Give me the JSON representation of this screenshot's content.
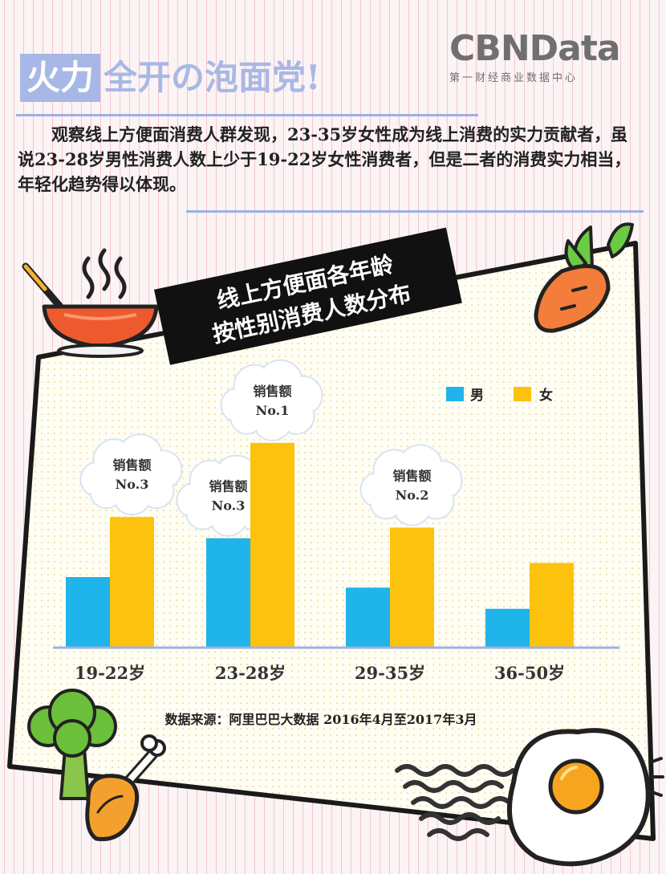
{
  "header": {
    "title_highlight": "火力",
    "title_rest": "全开の泡面党!",
    "logo": "CBNData",
    "logo_sub": "第一财经商业数据中心"
  },
  "intro_text": "观察线上方便面消费人群发现，23-35岁女性成为线上消费的实力贡献者，虽说23-28岁男性消费人数上少于19-22岁女性消费者，但是二者的消费实力相当，年轻化趋势得以体现。",
  "chart_title_lines": [
    "线上方便面各年龄",
    "按性别消费人数分布"
  ],
  "source": "数据来源：阿里巴巴大数据 2016年4月至2017年3月",
  "colors": {
    "male": "#1fb4ea",
    "female": "#fdc20d",
    "title_blue": "#a8b8e6",
    "axis": "#9db0e3"
  },
  "icons": [
    "soup-pot-icon",
    "carrot-icon",
    "broccoli-icon",
    "chicken-leg-icon",
    "fried-egg-icon",
    "noodles-icon"
  ],
  "chart_data": {
    "type": "bar",
    "categories": [
      "19-22岁",
      "23-28岁",
      "29-35岁",
      "36-50岁"
    ],
    "series": [
      {
        "name": "男",
        "values": [
          20,
          31,
          17,
          11
        ]
      },
      {
        "name": "女",
        "values": [
          37,
          58,
          34,
          24
        ]
      }
    ],
    "ylim": [
      0,
      60
    ],
    "grid": false,
    "legend": "top-right",
    "annotations": [
      {
        "category": "19-22岁",
        "series": "女",
        "line1": "销售额",
        "line2": "No.3"
      },
      {
        "category": "23-28岁",
        "series": "男",
        "line1": "销售额",
        "line2": "No.3"
      },
      {
        "category": "23-28岁",
        "series": "女",
        "line1": "销售额",
        "line2": "No.1"
      },
      {
        "category": "29-35岁",
        "series": "女",
        "line1": "销售额",
        "line2": "No.2"
      }
    ]
  }
}
